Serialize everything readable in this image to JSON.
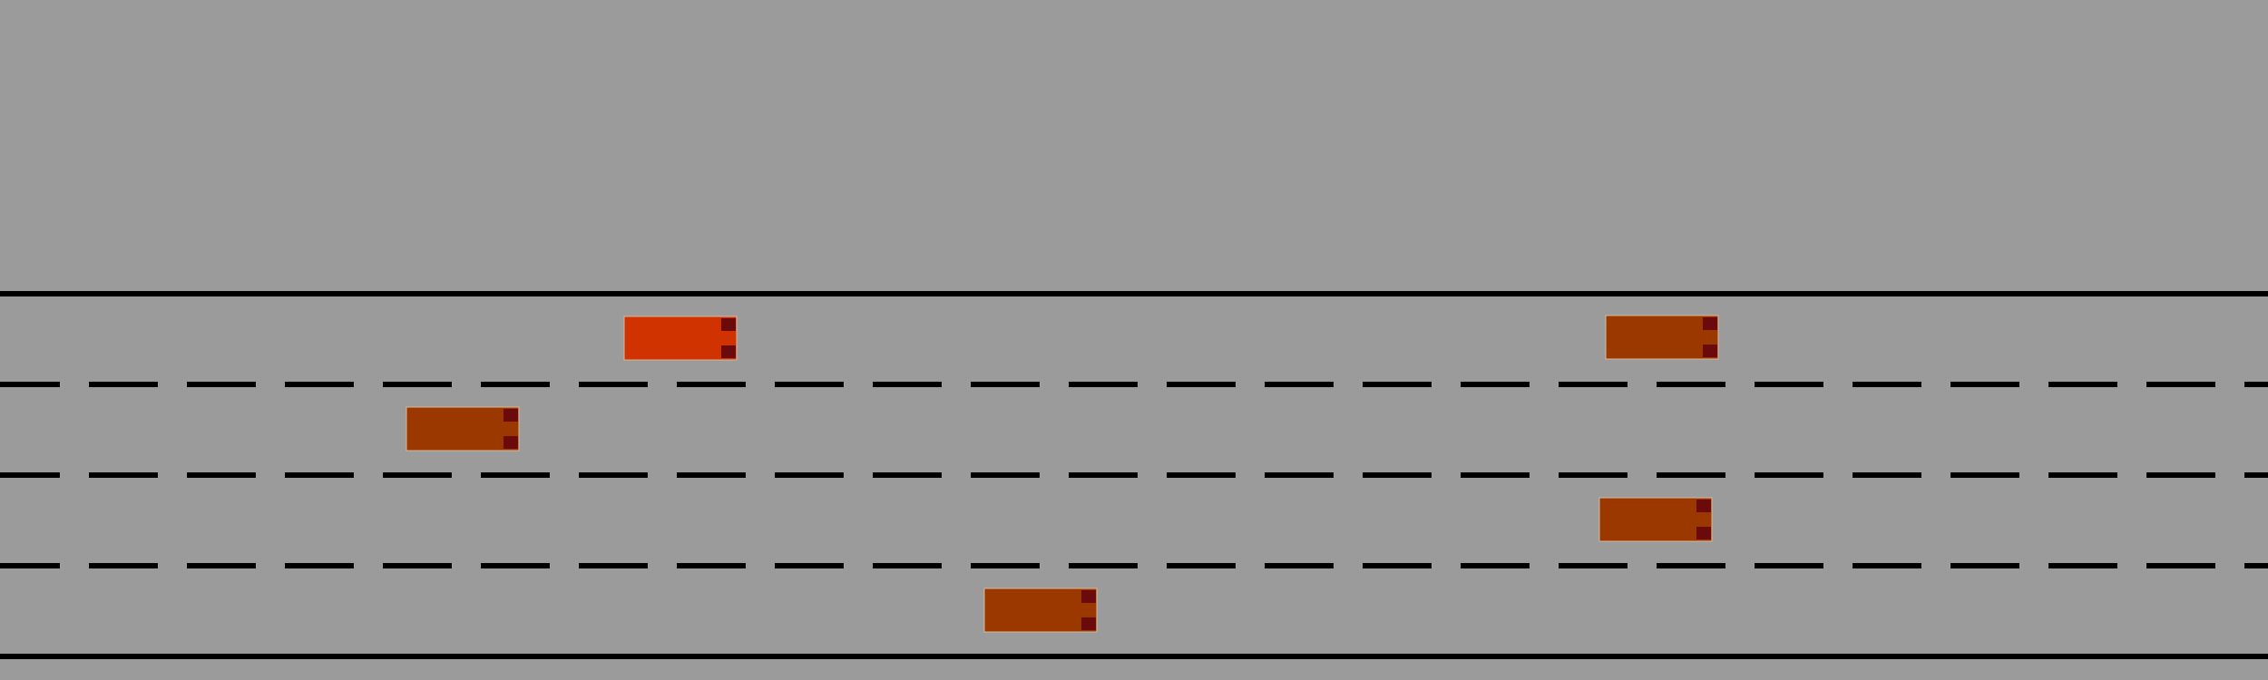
{
  "scene": {
    "type": "highway-driving-simulation",
    "lane_count": 4,
    "colors": {
      "background": "#9b9b9b",
      "road_line": "#000000",
      "ego_vehicle": "#d03300",
      "other_vehicle": "#9a3800",
      "vehicle_lights": "#6a0a0a",
      "vehicle_outline": "#d9b79a"
    },
    "lane_markings": {
      "outer_edges": "solid",
      "inner_dividers": "dashed"
    },
    "vehicles": [
      {
        "role": "ego",
        "lane": 1,
        "heading": "right"
      },
      {
        "role": "other",
        "lane": 2,
        "heading": "right"
      },
      {
        "role": "other",
        "lane": 1,
        "heading": "right"
      },
      {
        "role": "other",
        "lane": 3,
        "heading": "right"
      },
      {
        "role": "other",
        "lane": 4,
        "heading": "right"
      }
    ]
  }
}
